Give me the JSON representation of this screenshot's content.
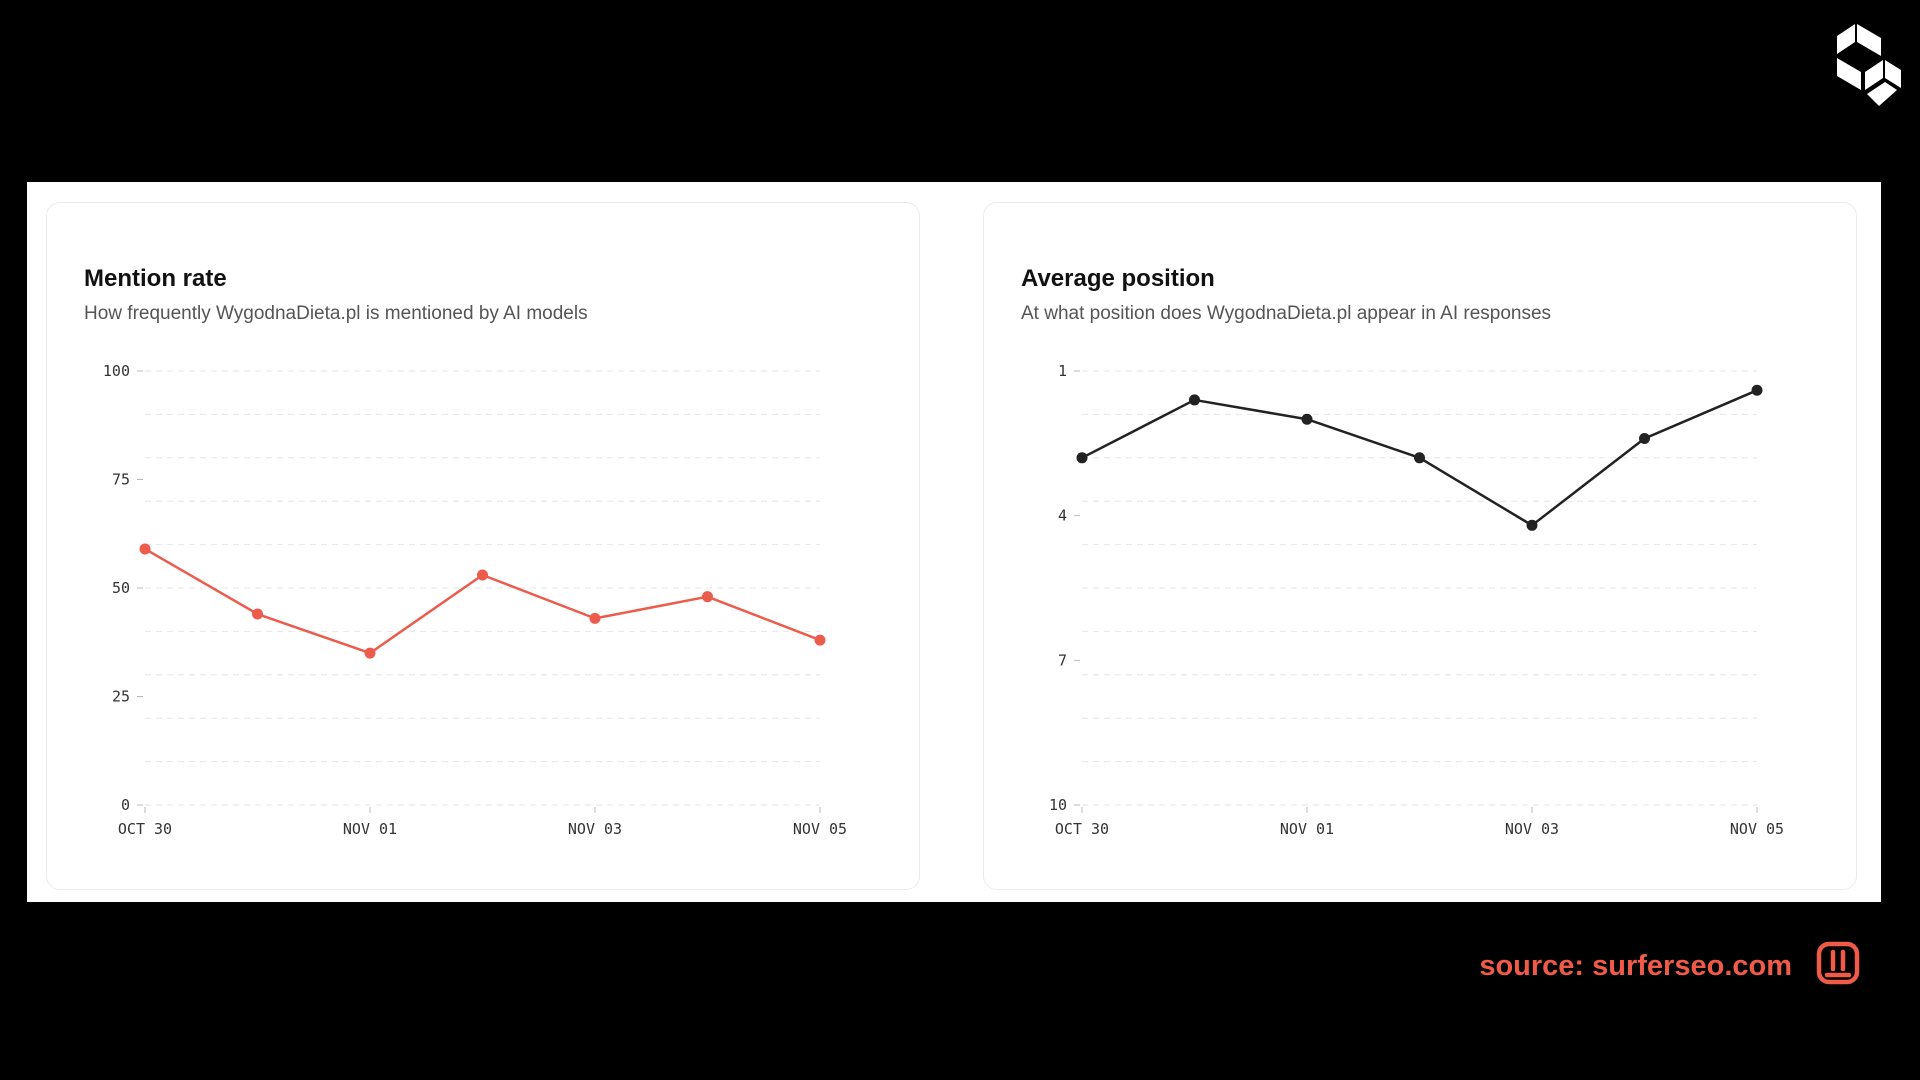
{
  "colors": {
    "mention_line": "#EC5B4C",
    "position_line": "#222222",
    "grid": "#E6E6E6",
    "source_text": "#F05A48",
    "source_icon": "#F05A48"
  },
  "icons": {
    "brand": "surfer-s-logo-icon",
    "source": "brand-mark-icon"
  },
  "source_label": "source: surferseo.com",
  "chart_data": [
    {
      "type": "line",
      "title": "Mention rate",
      "subtitle": "How frequently WygodnaDieta.pl is mentioned by AI models",
      "x": [
        "OCT 30",
        "OCT 31",
        "NOV 01",
        "NOV 02",
        "NOV 03",
        "NOV 04",
        "NOV 05"
      ],
      "x_tick_labels": [
        "OCT 30",
        "NOV 01",
        "NOV 03",
        "NOV 05"
      ],
      "series": [
        {
          "values": [
            59,
            44,
            35,
            53,
            43,
            48,
            38
          ]
        }
      ],
      "ylim": [
        0,
        100
      ],
      "y_ticks": [
        0,
        25,
        50,
        75,
        100
      ],
      "y_inverted": false,
      "grid": true
    },
    {
      "type": "line",
      "title": "Average position",
      "subtitle": "At what position does WygodnaDieta.pl appear in AI responses",
      "x": [
        "OCT 30",
        "OCT 31",
        "NOV 01",
        "NOV 02",
        "NOV 03",
        "NOV 04",
        "NOV 05"
      ],
      "x_tick_labels": [
        "OCT 30",
        "NOV 01",
        "NOV 03",
        "NOV 05"
      ],
      "series": [
        {
          "values": [
            2.8,
            1.6,
            2.0,
            2.8,
            4.2,
            2.4,
            1.4
          ]
        }
      ],
      "ylim": [
        1,
        10
      ],
      "y_ticks": [
        1,
        4,
        7,
        10
      ],
      "y_inverted": true,
      "grid": true
    }
  ]
}
